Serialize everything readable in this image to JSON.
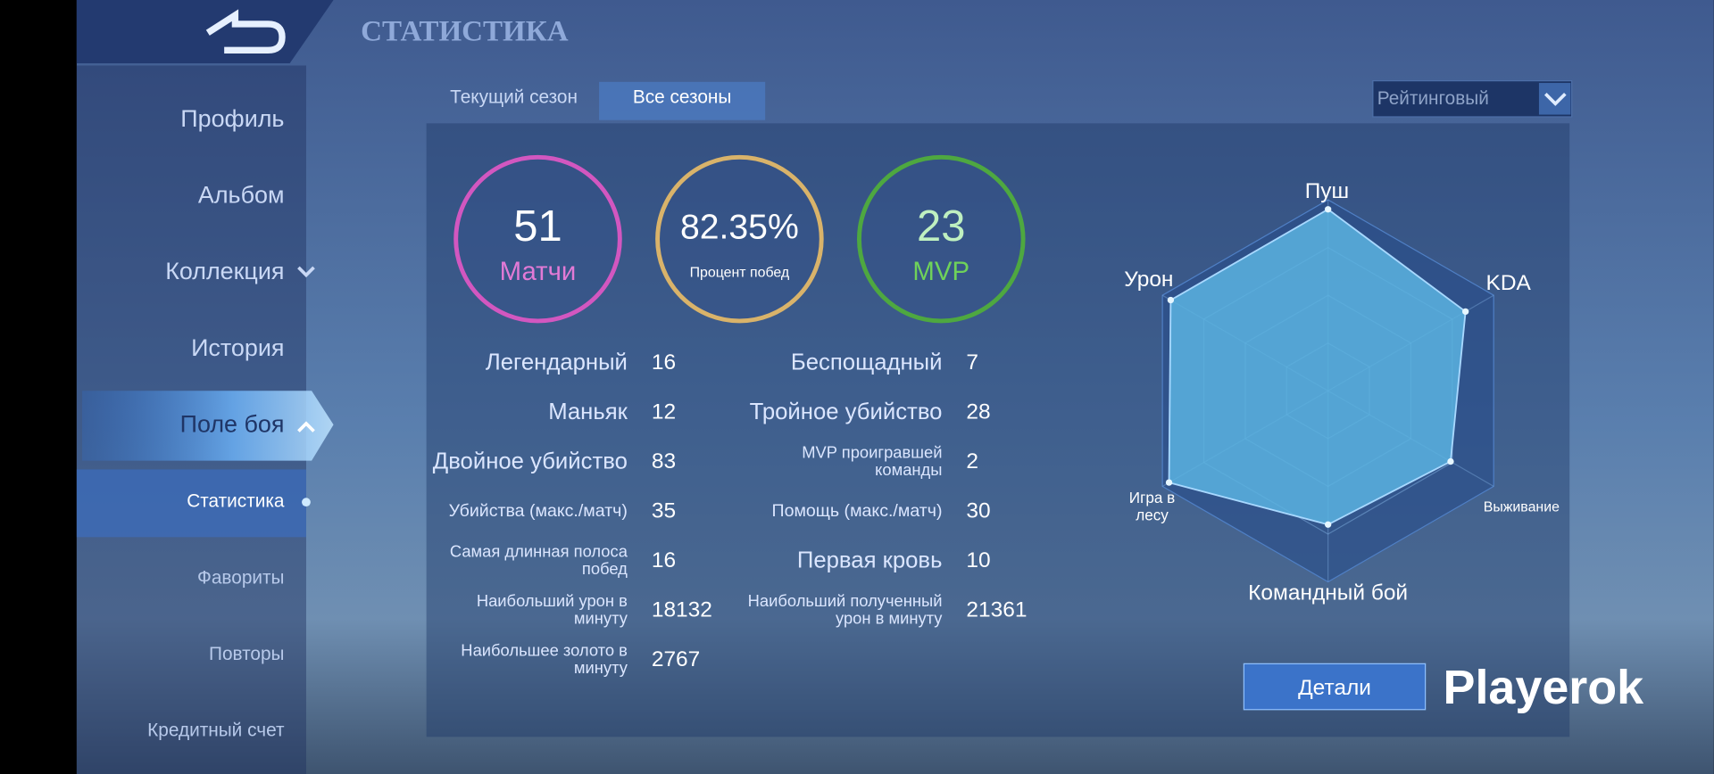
{
  "header": {
    "title": "СТАТИСТИКА"
  },
  "sidebar": {
    "items": [
      "Профиль",
      "Альбом",
      "Коллекция",
      "История",
      "Поле боя"
    ],
    "subitems": [
      "Статистика",
      "Фавориты",
      "Повторы",
      "Кредитный счет"
    ]
  },
  "tabs": [
    "Текущий сезон",
    "Все сезоны"
  ],
  "dropdown": "Рейтинговый",
  "summary": [
    {
      "value": 51,
      "label": "Матчи"
    },
    {
      "value": "82.35%",
      "label": "Процент побед"
    },
    {
      "value": 23,
      "label": "MVP"
    }
  ],
  "stats_left": [
    {
      "label": "Легендарный",
      "value": 16
    },
    {
      "label": "Маньяк",
      "value": 12
    },
    {
      "label": "Двойное убийство",
      "value": 83
    },
    {
      "label": "Убийства (макс./матч)",
      "value": 35
    },
    {
      "label": [
        "Самая длинная полоса",
        "побед"
      ],
      "value": 16
    },
    {
      "label": [
        "Наибольший урон в",
        "минуту"
      ],
      "value": 18132
    },
    {
      "label": [
        "Наибольшее золото в",
        "минуту"
      ],
      "value": 2767
    }
  ],
  "stats_right": [
    {
      "label": "Беспощадный",
      "value": 7
    },
    {
      "label": "Тройное убийство",
      "value": 28
    },
    {
      "label": [
        "MVP проигравшей",
        "команды"
      ],
      "value": 2
    },
    {
      "label": "Помощь (макс./матч)",
      "value": 30
    },
    {
      "label": "Первая кровь",
      "value": 10
    },
    {
      "label": [
        "Наибольший полученный",
        "урон в минуту"
      ],
      "value": 21361
    }
  ],
  "radar": {
    "type": "radar",
    "labels": [
      "Пуш",
      "KDA",
      "Выживание",
      "Командный бой",
      [
        "Игра в",
        "лесу"
      ],
      "Урон"
    ],
    "values": [
      95,
      83,
      74,
      70,
      96,
      95
    ],
    "rlim": [
      0,
      100
    ],
    "color": "#5ab3e0"
  },
  "button": "Детали",
  "watermark": "Playerok"
}
